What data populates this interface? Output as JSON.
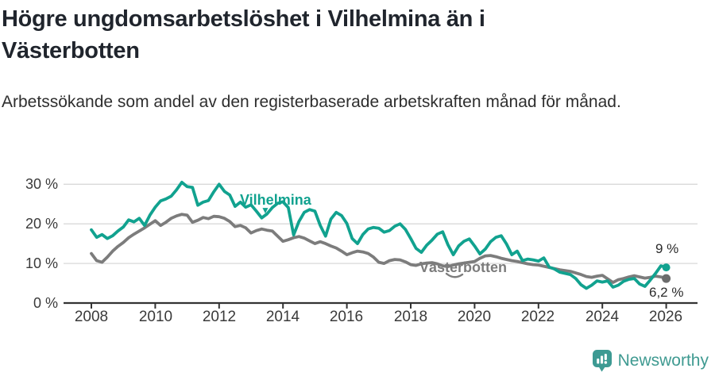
{
  "header": {
    "title": "Högre ungdomsarbetslöshet i Vilhelmina än i Västerbotten",
    "subtitle": "Arbetssökande som andel av den registerbaserade arbetskraften månad för månad."
  },
  "colors": {
    "vilhelmina": "#11a28f",
    "vasterbotten": "#7c7c7c",
    "grid": "#d9d9d9",
    "axis": "#333333",
    "label_text": "#2b2b2b",
    "brand": "#3f9a91"
  },
  "chart_data": {
    "type": "line",
    "title": "Högre ungdomsarbetslöshet i Vilhelmina än i Västerbotten",
    "subtitle": "Arbetssökande som andel av den registerbaserade arbetskraften månad för månad.",
    "xlabel": "",
    "ylabel": "",
    "grid": "horizontal",
    "legend_position": "inline-labels",
    "x_start_year": 2008.0,
    "x_step_years": 0.16667,
    "x_ticks": [
      2008,
      2010,
      2012,
      2014,
      2016,
      2018,
      2020,
      2022,
      2024,
      2026
    ],
    "x_tick_labels": [
      "2008",
      "2010",
      "2012",
      "2014",
      "2016",
      "2018",
      "2020",
      "2022",
      "2024",
      "2026"
    ],
    "y_ticks": [
      0,
      10,
      20,
      30
    ],
    "y_tick_labels": [
      "0 %",
      "10 %",
      "20 %",
      "30 %"
    ],
    "ylim": [
      0,
      32
    ],
    "xlim": [
      2007.1,
      2027
    ],
    "series": [
      {
        "name": "Vilhelmina",
        "color": "#11a28f",
        "dot_color": "#11a28f",
        "end_value": 9.0,
        "end_label": "9 %",
        "values": [
          18.5,
          16.6,
          17.3,
          16.3,
          17.0,
          18.2,
          19.2,
          21.0,
          20.5,
          21.4,
          19.6,
          22.2,
          24.2,
          25.8,
          26.3,
          27.0,
          28.6,
          30.5,
          29.4,
          29.2,
          24.7,
          25.5,
          25.9,
          28.1,
          30.0,
          28.2,
          27.3,
          24.4,
          25.5,
          24.2,
          24.8,
          23.2,
          21.5,
          22.5,
          24.1,
          25.2,
          25.6,
          24.1,
          17.2,
          20.6,
          22.9,
          23.6,
          23.2,
          19.6,
          16.9,
          21.2,
          22.9,
          22.1,
          20.1,
          16.3,
          15.0,
          17.3,
          18.7,
          19.1,
          18.9,
          17.9,
          18.3,
          19.4,
          20.0,
          18.6,
          16.3,
          13.8,
          12.8,
          14.6,
          15.9,
          17.4,
          18.0,
          14.7,
          12.2,
          14.4,
          15.6,
          16.2,
          14.4,
          12.4,
          13.6,
          15.5,
          16.6,
          17.0,
          14.9,
          12.2,
          13.1,
          10.7,
          11.1,
          10.9,
          10.6,
          11.4,
          9.1,
          8.6,
          7.8,
          7.5,
          7.2,
          6.2,
          4.6,
          3.7,
          4.5,
          5.6,
          5.3,
          5.6,
          4.0,
          4.5,
          5.5,
          6.0,
          6.2,
          4.8,
          4.2,
          5.8,
          7.5,
          9.4,
          9.0
        ]
      },
      {
        "name": "Västerbotten",
        "color": "#7c7c7c",
        "dot_color": "#6b6b6b",
        "end_value": 6.2,
        "end_label": "6,2 %",
        "values": [
          12.5,
          10.7,
          10.3,
          11.6,
          13.1,
          14.3,
          15.3,
          16.5,
          17.4,
          18.2,
          19.0,
          19.9,
          20.8,
          19.6,
          20.4,
          21.4,
          22.0,
          22.4,
          22.2,
          20.4,
          20.9,
          21.6,
          21.3,
          21.9,
          21.8,
          21.4,
          20.6,
          19.3,
          19.6,
          19.0,
          17.7,
          18.3,
          18.7,
          18.4,
          18.2,
          16.9,
          15.6,
          16.0,
          16.5,
          16.8,
          16.4,
          15.7,
          15.0,
          15.5,
          15.0,
          14.4,
          13.9,
          13.1,
          12.2,
          12.7,
          13.1,
          12.9,
          12.5,
          11.6,
          10.3,
          10.0,
          10.7,
          11.0,
          10.9,
          10.4,
          9.7,
          9.5,
          9.9,
          10.1,
          10.2,
          9.9,
          9.4,
          9.2,
          9.6,
          9.9,
          10.1,
          10.3,
          10.5,
          11.3,
          11.9,
          12.0,
          11.7,
          11.3,
          11.0,
          10.7,
          10.5,
          10.2,
          9.9,
          9.7,
          9.6,
          9.3,
          9.0,
          8.7,
          8.4,
          8.2,
          8.0,
          7.6,
          7.2,
          6.7,
          6.5,
          6.8,
          7.0,
          6.1,
          5.2,
          5.9,
          6.2,
          6.6,
          6.9,
          6.6,
          6.3,
          6.5,
          6.8,
          6.6,
          6.2
        ]
      }
    ]
  },
  "footer": {
    "brand": "Newsworthy"
  }
}
